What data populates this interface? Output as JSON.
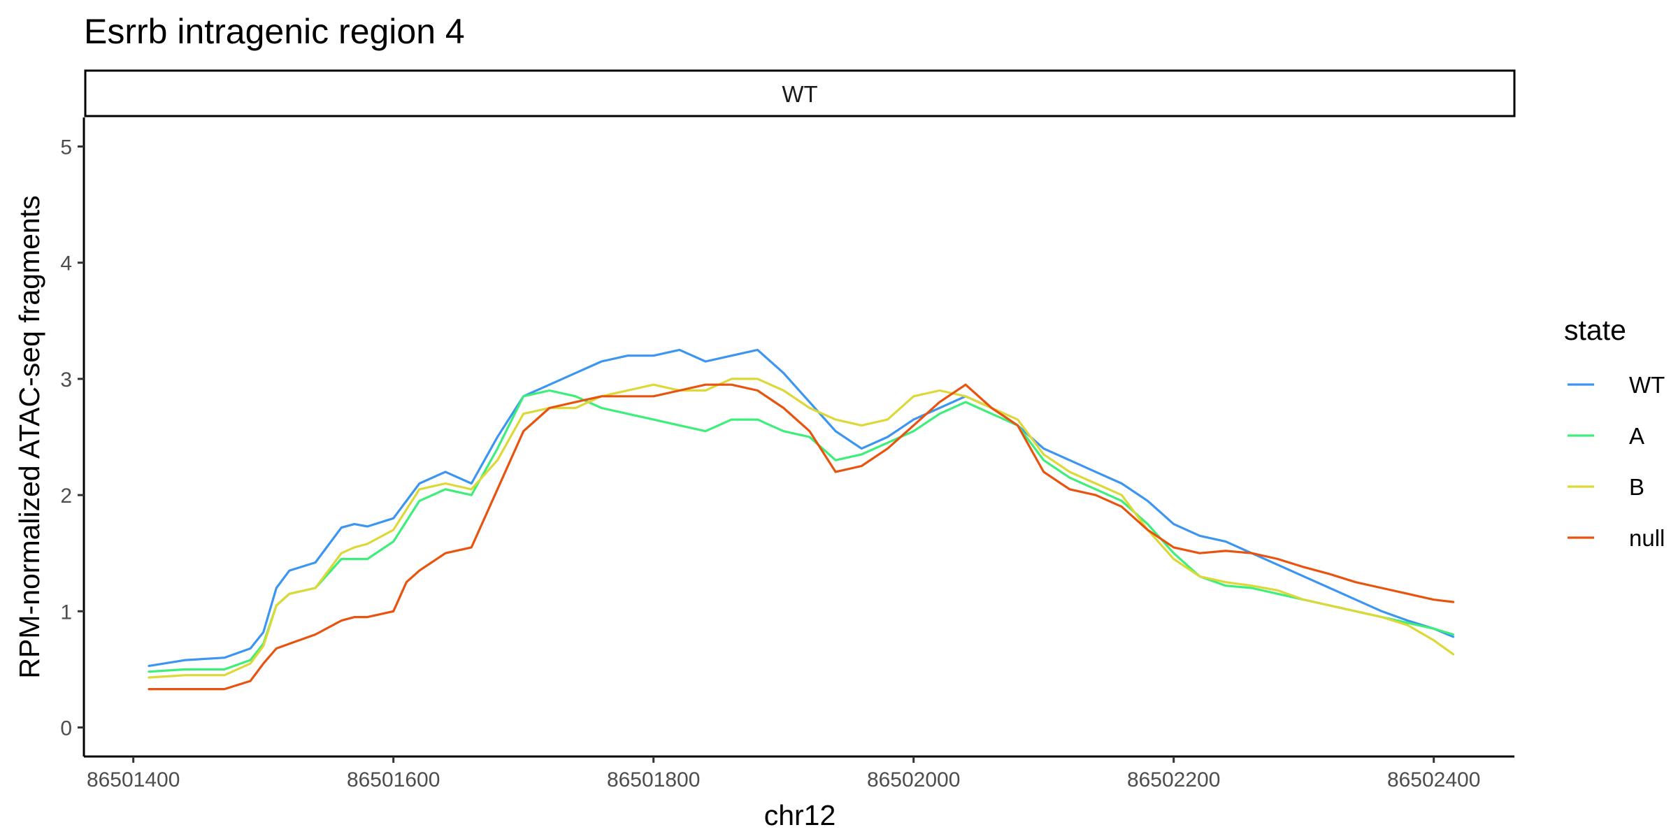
{
  "chart_data": {
    "type": "line",
    "title": "Esrrb intragenic region 4",
    "panel": "WT",
    "xlabel": "chr12",
    "ylabel": "RPM-normalized ATAC-seq fragments",
    "xlim": [
      86501362,
      86502462
    ],
    "ylim": [
      -0.25,
      5.25
    ],
    "x_ticks": [
      86501400,
      86501600,
      86501800,
      86502000,
      86502200,
      86502400
    ],
    "y_ticks": [
      0,
      1,
      2,
      3,
      4,
      5
    ],
    "grid": false,
    "legend": {
      "title": "state",
      "position": "right"
    },
    "series": [
      {
        "name": "WT",
        "color": "#3d95f2",
        "x": [
          86501412,
          86501440,
          86501470,
          86501490,
          86501500,
          86501510,
          86501520,
          86501540,
          86501560,
          86501570,
          86501580,
          86501600,
          86501620,
          86501640,
          86501660,
          86501680,
          86501700,
          86501720,
          86501740,
          86501760,
          86501780,
          86501800,
          86501820,
          86501840,
          86501860,
          86501880,
          86501900,
          86501920,
          86501940,
          86501960,
          86501980,
          86502000,
          86502020,
          86502040,
          86502060,
          86502080,
          86502100,
          86502120,
          86502140,
          86502160,
          86502180,
          86502200,
          86502220,
          86502240,
          86502260,
          86502280,
          86502300,
          86502320,
          86502340,
          86502360,
          86502380,
          86502400,
          86502415
        ],
        "y": [
          0.53,
          0.58,
          0.6,
          0.68,
          0.82,
          1.2,
          1.35,
          1.42,
          1.72,
          1.75,
          1.73,
          1.8,
          2.1,
          2.2,
          2.1,
          2.5,
          2.85,
          2.95,
          3.05,
          3.15,
          3.2,
          3.2,
          3.25,
          3.15,
          3.2,
          3.25,
          3.05,
          2.8,
          2.55,
          2.4,
          2.5,
          2.65,
          2.75,
          2.85,
          2.75,
          2.6,
          2.4,
          2.3,
          2.2,
          2.1,
          1.95,
          1.75,
          1.65,
          1.6,
          1.5,
          1.4,
          1.3,
          1.2,
          1.1,
          1.0,
          0.92,
          0.85,
          0.78
        ]
      },
      {
        "name": "A",
        "color": "#3def7a",
        "x": [
          86501412,
          86501440,
          86501470,
          86501490,
          86501500,
          86501510,
          86501520,
          86501540,
          86501560,
          86501570,
          86501580,
          86501600,
          86501620,
          86501640,
          86501660,
          86501680,
          86501700,
          86501720,
          86501740,
          86501760,
          86501780,
          86501800,
          86501820,
          86501840,
          86501860,
          86501880,
          86501900,
          86501920,
          86501940,
          86501960,
          86501980,
          86502000,
          86502020,
          86502040,
          86502060,
          86502080,
          86502100,
          86502120,
          86502140,
          86502160,
          86502180,
          86502200,
          86502220,
          86502240,
          86502260,
          86502280,
          86502300,
          86502320,
          86502340,
          86502360,
          86502380,
          86502400,
          86502415
        ],
        "y": [
          0.48,
          0.5,
          0.5,
          0.58,
          0.72,
          1.05,
          1.15,
          1.2,
          1.45,
          1.45,
          1.45,
          1.6,
          1.95,
          2.05,
          2.0,
          2.4,
          2.85,
          2.9,
          2.85,
          2.75,
          2.7,
          2.65,
          2.6,
          2.55,
          2.65,
          2.65,
          2.55,
          2.5,
          2.3,
          2.35,
          2.45,
          2.55,
          2.7,
          2.8,
          2.7,
          2.6,
          2.3,
          2.15,
          2.05,
          1.95,
          1.75,
          1.5,
          1.3,
          1.22,
          1.2,
          1.15,
          1.1,
          1.05,
          1.0,
          0.95,
          0.9,
          0.85,
          0.8
        ]
      },
      {
        "name": "B",
        "color": "#dcd838",
        "x": [
          86501412,
          86501440,
          86501470,
          86501490,
          86501500,
          86501510,
          86501520,
          86501540,
          86501560,
          86501570,
          86501580,
          86501600,
          86501620,
          86501640,
          86501660,
          86501680,
          86501700,
          86501720,
          86501740,
          86501760,
          86501780,
          86501800,
          86501820,
          86501840,
          86501860,
          86501880,
          86501900,
          86501920,
          86501940,
          86501960,
          86501980,
          86502000,
          86502020,
          86502040,
          86502060,
          86502080,
          86502100,
          86502120,
          86502140,
          86502160,
          86502180,
          86502200,
          86502220,
          86502240,
          86502260,
          86502280,
          86502300,
          86502320,
          86502340,
          86502360,
          86502380,
          86502400,
          86502415
        ],
        "y": [
          0.43,
          0.45,
          0.45,
          0.55,
          0.7,
          1.05,
          1.15,
          1.2,
          1.5,
          1.55,
          1.58,
          1.7,
          2.05,
          2.1,
          2.05,
          2.3,
          2.7,
          2.75,
          2.75,
          2.85,
          2.9,
          2.95,
          2.9,
          2.9,
          3.0,
          3.0,
          2.9,
          2.75,
          2.65,
          2.6,
          2.65,
          2.85,
          2.9,
          2.85,
          2.75,
          2.65,
          2.35,
          2.2,
          2.1,
          2.0,
          1.7,
          1.45,
          1.3,
          1.25,
          1.22,
          1.18,
          1.1,
          1.05,
          1.0,
          0.95,
          0.88,
          0.75,
          0.63
        ]
      },
      {
        "name": "null",
        "color": "#e8540f",
        "x": [
          86501412,
          86501440,
          86501470,
          86501490,
          86501500,
          86501510,
          86501520,
          86501540,
          86501560,
          86501570,
          86501580,
          86501600,
          86501610,
          86501620,
          86501640,
          86501660,
          86501680,
          86501700,
          86501720,
          86501740,
          86501760,
          86501780,
          86501800,
          86501820,
          86501840,
          86501860,
          86501880,
          86501900,
          86501920,
          86501940,
          86501960,
          86501980,
          86502000,
          86502020,
          86502040,
          86502060,
          86502080,
          86502100,
          86502120,
          86502140,
          86502160,
          86502180,
          86502200,
          86502220,
          86502240,
          86502260,
          86502280,
          86502300,
          86502320,
          86502340,
          86502360,
          86502380,
          86502400,
          86502415
        ],
        "y": [
          0.33,
          0.33,
          0.33,
          0.4,
          0.55,
          0.68,
          0.72,
          0.8,
          0.92,
          0.95,
          0.95,
          1.0,
          1.25,
          1.35,
          1.5,
          1.55,
          2.05,
          2.55,
          2.75,
          2.8,
          2.85,
          2.85,
          2.85,
          2.9,
          2.95,
          2.95,
          2.9,
          2.75,
          2.55,
          2.2,
          2.25,
          2.4,
          2.6,
          2.8,
          2.95,
          2.75,
          2.6,
          2.2,
          2.05,
          2.0,
          1.9,
          1.7,
          1.55,
          1.5,
          1.52,
          1.5,
          1.45,
          1.38,
          1.32,
          1.25,
          1.2,
          1.15,
          1.1,
          1.08
        ]
      }
    ]
  }
}
